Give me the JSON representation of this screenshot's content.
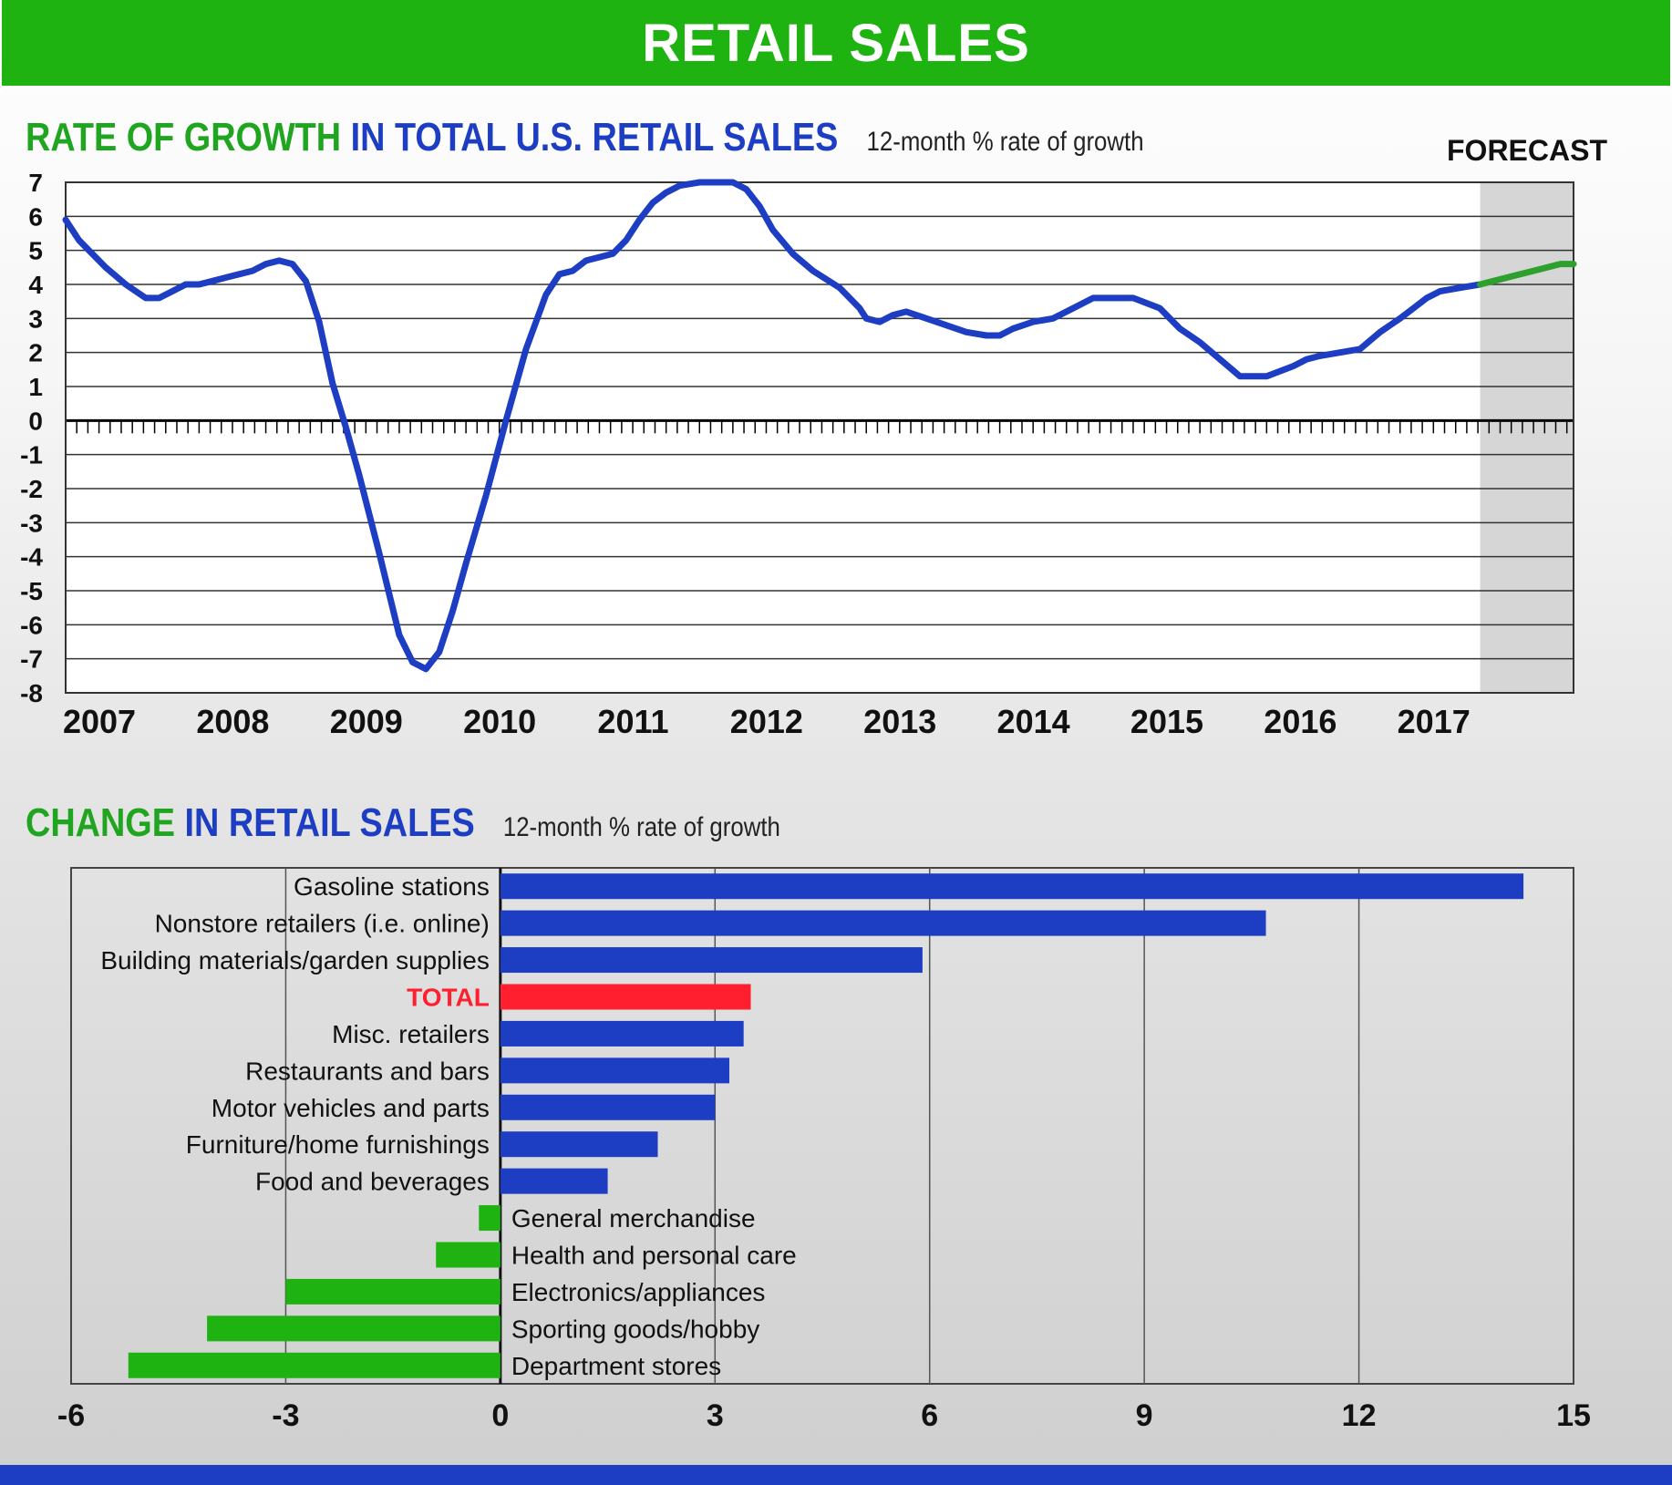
{
  "header": {
    "title": "RETAIL SALES"
  },
  "line_section": {
    "title_green": "RATE OF GROWTH",
    "title_blue": "IN TOTAL U.S. RETAIL SALES",
    "subtitle": "12-month % rate of growth",
    "forecast_label": "FORECAST"
  },
  "bar_section": {
    "title_green": "CHANGE",
    "title_blue": "IN RETAIL SALES",
    "subtitle": "12-month % rate of growth"
  },
  "colors": {
    "header_green": "#1fb312",
    "line_blue": "#1d3ec2",
    "forecast_green": "#2ea02e",
    "bar_blue": "#1d3ec2",
    "bar_red": "#ff1f2e",
    "bar_green": "#1fb312",
    "forecast_shade": "#d6d6d6",
    "footer_blue": "#1d3ec2"
  },
  "chart_data": [
    {
      "type": "line",
      "ylim": [
        -8,
        7
      ],
      "xlim": [
        2007,
        2018.3
      ],
      "yticks": [
        "7",
        "6",
        "5",
        "4",
        "3",
        "2",
        "1",
        "0",
        "-1",
        "-2",
        "-3",
        "-4",
        "-5",
        "-6",
        "-7",
        "-8"
      ],
      "xticks": [
        "2007",
        "2008",
        "2009",
        "2010",
        "2011",
        "2012",
        "2013",
        "2014",
        "2015",
        "2016",
        "2017"
      ],
      "forecast_start": 2017.6,
      "series": [
        {
          "role": "actual",
          "x": [
            2007.0,
            2007.1,
            2007.3,
            2007.45,
            2007.6,
            2007.7,
            2007.8,
            2007.9,
            2008.0,
            2008.1,
            2008.2,
            2008.3,
            2008.4,
            2008.5,
            2008.6,
            2008.7,
            2008.8,
            2008.9,
            2009.0,
            2009.1,
            2009.2,
            2009.35,
            2009.5,
            2009.6,
            2009.7,
            2009.8,
            2009.9,
            2010.0,
            2010.15,
            2010.3,
            2010.45,
            2010.6,
            2010.7,
            2010.8,
            2010.9,
            2011.0,
            2011.1,
            2011.2,
            2011.3,
            2011.4,
            2011.5,
            2011.6,
            2011.75,
            2011.9,
            2012.0,
            2012.1,
            2012.2,
            2012.3,
            2012.45,
            2012.6,
            2012.8,
            2012.95,
            2013.0,
            2013.1,
            2013.2,
            2013.3,
            2013.45,
            2013.6,
            2013.75,
            2013.9,
            2014.0,
            2014.1,
            2014.25,
            2014.4,
            2014.55,
            2014.7,
            2014.85,
            2015.0,
            2015.2,
            2015.35,
            2015.5,
            2015.65,
            2015.8,
            2015.9,
            2016.0,
            2016.2,
            2016.3,
            2016.4,
            2016.55,
            2016.7,
            2016.85,
            2017.0,
            2017.1,
            2017.2,
            2017.3,
            2017.45,
            2017.6
          ],
          "y": [
            5.9,
            5.3,
            4.5,
            4.0,
            3.6,
            3.6,
            3.8,
            4.0,
            4.0,
            4.1,
            4.2,
            4.3,
            4.4,
            4.6,
            4.7,
            4.6,
            4.1,
            2.9,
            1.1,
            -0.2,
            -1.6,
            -3.9,
            -6.3,
            -7.1,
            -7.3,
            -6.8,
            -5.6,
            -4.2,
            -2.2,
            0.0,
            2.1,
            3.7,
            4.3,
            4.4,
            4.7,
            4.8,
            4.9,
            5.3,
            5.9,
            6.4,
            6.7,
            6.9,
            7.0,
            7.0,
            7.0,
            6.8,
            6.3,
            5.6,
            4.9,
            4.4,
            3.9,
            3.3,
            3.0,
            2.9,
            3.1,
            3.2,
            3.0,
            2.8,
            2.6,
            2.5,
            2.5,
            2.7,
            2.9,
            3.0,
            3.3,
            3.6,
            3.6,
            3.6,
            3.3,
            2.7,
            2.3,
            1.8,
            1.3,
            1.3,
            1.3,
            1.6,
            1.8,
            1.9,
            2.0,
            2.1,
            2.6,
            3.0,
            3.3,
            3.6,
            3.8,
            3.9,
            4.0
          ]
        },
        {
          "role": "forecast",
          "x": [
            2017.6,
            2017.8,
            2018.0,
            2018.2,
            2018.3
          ],
          "y": [
            4.0,
            4.2,
            4.4,
            4.6,
            4.6
          ]
        }
      ]
    },
    {
      "type": "bar",
      "orientation": "horizontal",
      "xlim": [
        -6,
        15
      ],
      "xticks": [
        "-6",
        "-3",
        "0",
        "3",
        "6",
        "9",
        "12",
        "15"
      ],
      "categories": [
        "Gasoline stations",
        "Nonstore retailers (i.e. online)",
        "Building materials/garden supplies",
        "TOTAL",
        "Misc. retailers",
        "Restaurants and bars",
        "Motor vehicles and parts",
        "Furniture/home furnishings",
        "Food and beverages",
        "General merchandise",
        "Health and personal care",
        "Electronics/appliances",
        "Sporting goods/hobby",
        "Department stores"
      ],
      "values": [
        14.3,
        10.7,
        5.9,
        3.5,
        3.4,
        3.2,
        3.0,
        2.2,
        1.5,
        -0.3,
        -0.9,
        -3.0,
        -4.1,
        -5.2
      ]
    }
  ]
}
